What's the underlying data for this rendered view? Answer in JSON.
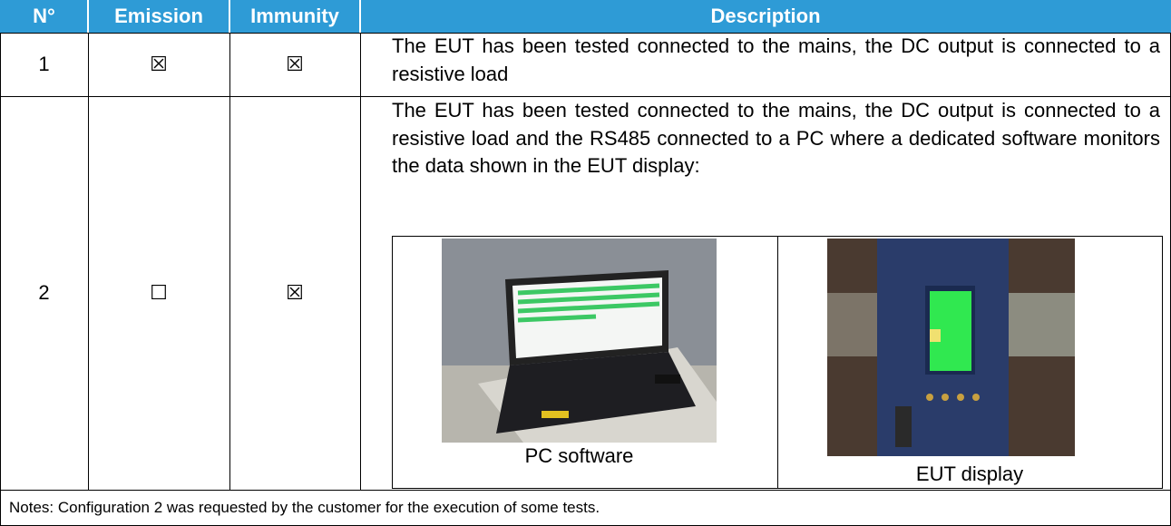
{
  "header": {
    "columns": [
      "N°",
      "Emission",
      "Immunity",
      "Description"
    ]
  },
  "table": {
    "rows": [
      {
        "number": "1",
        "emission": "☒",
        "immunity": "☒",
        "description": "The EUT has been tested connected to the mains, the DC output is connected to a resistive load"
      },
      {
        "number": "2",
        "emission": "☐",
        "immunity": "☒",
        "description": "The EUT has been tested connected to the mains, the DC output is connected to a resistive load and the RS485 connected to a PC where a dedicated software monitors the data shown in the EUT display:",
        "photos": [
          {
            "caption": "PC software"
          },
          {
            "caption": "EUT display"
          }
        ]
      }
    ]
  },
  "notes": "Notes: Configuration 2 was requested by the customer for the execution of some tests."
}
